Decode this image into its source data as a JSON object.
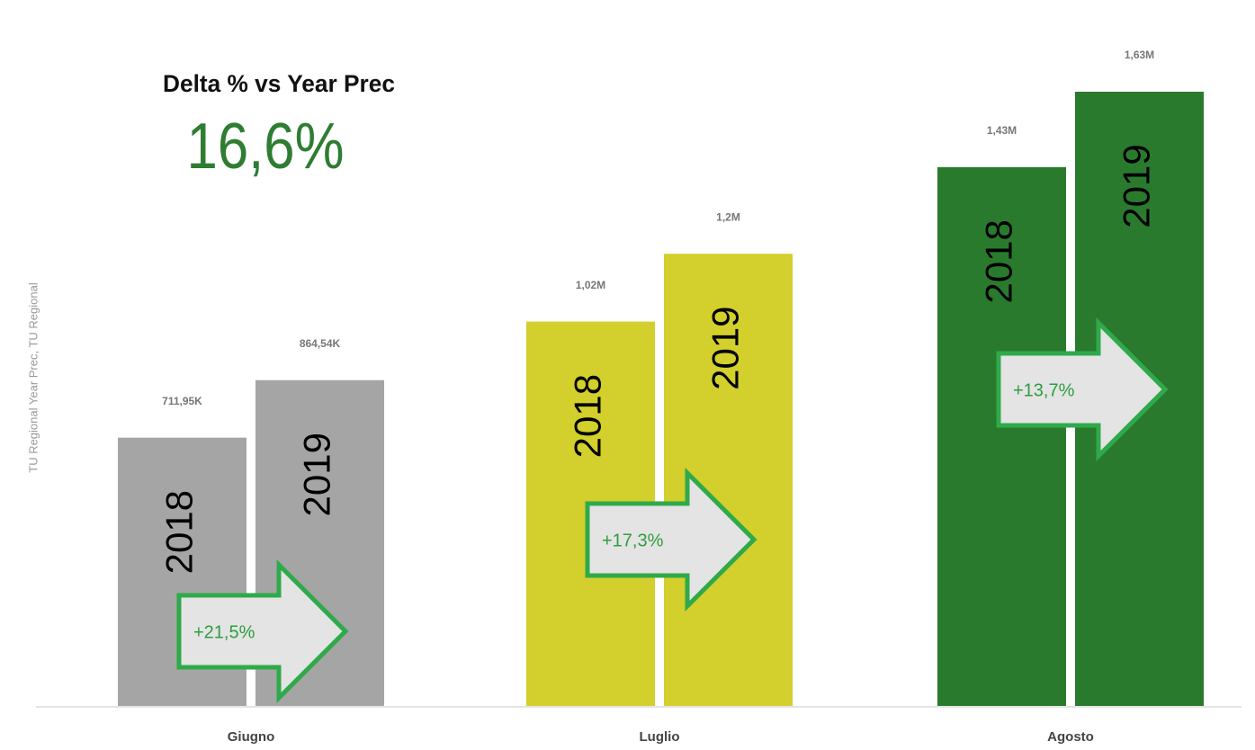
{
  "chart_data": {
    "type": "bar",
    "title": "Delta % vs Year Prec",
    "kpi": "16,6%",
    "y_label": "TU Regional Year Prec, TU Regional",
    "categories": [
      "Giugno",
      "Luglio",
      "Agosto"
    ],
    "category_colors": [
      "#a5a5a5",
      "#d3cf2c",
      "#2a7a2e"
    ],
    "series": [
      {
        "name": "2018",
        "values": [
          711950,
          1020000,
          1430000
        ],
        "value_labels": [
          "711,95K",
          "1,02M",
          "1,43M"
        ]
      },
      {
        "name": "2019",
        "values": [
          864540,
          1200000,
          1630000
        ],
        "value_labels": [
          "864,54K",
          "1,2M",
          "1,63M"
        ]
      }
    ],
    "annotations": [
      "+21,5%",
      "+17,3%",
      "+13,7%"
    ]
  }
}
